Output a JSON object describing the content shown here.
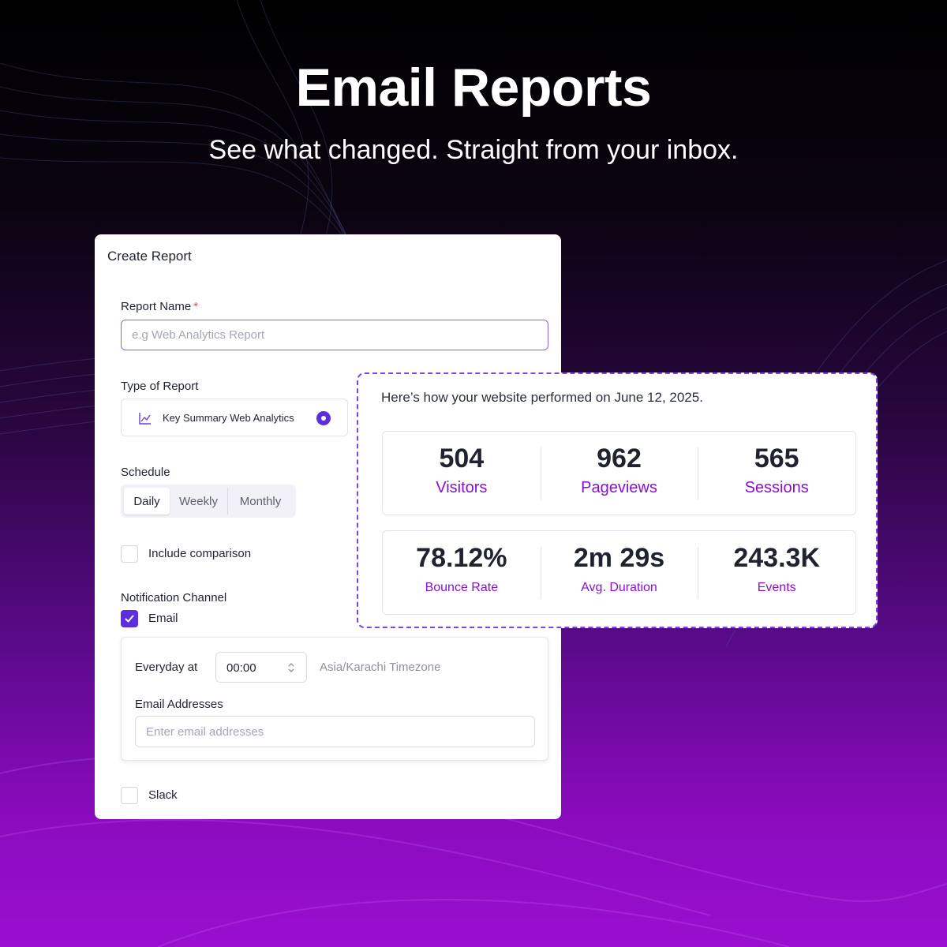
{
  "hero": {
    "title": "Email Reports",
    "subtitle": "See what changed. Straight from your inbox."
  },
  "form": {
    "title": "Create Report",
    "report_name": {
      "label": "Report Name",
      "required_marker": "*",
      "value": "",
      "placeholder": "e.g Web Analytics Report"
    },
    "type": {
      "label": "Type of Report",
      "selected": "Key Summary Web Analytics",
      "icon": "line-chart-icon"
    },
    "schedule": {
      "label": "Schedule",
      "options": [
        "Daily",
        "Weekly",
        "Monthly"
      ],
      "selected": "Daily"
    },
    "include_comparison": {
      "label": "Include comparison",
      "checked": false
    },
    "notification": {
      "label": "Notification Channel",
      "email": {
        "label": "Email",
        "checked": true
      },
      "everyday_label": "Everyday at",
      "time": "00:00",
      "timezone": "Asia/Karachi Timezone",
      "addresses_label": "Email Addresses",
      "addresses_placeholder": "Enter email addresses",
      "slack": {
        "label": "Slack",
        "checked": false
      }
    }
  },
  "preview": {
    "intro": "Here’s how your website performed on June 12, 2025.",
    "row1": [
      {
        "value": "504",
        "label": "Visitors"
      },
      {
        "value": "962",
        "label": "Pageviews"
      },
      {
        "value": "565",
        "label": "Sessions"
      }
    ],
    "row2": [
      {
        "value": "78.12%",
        "label": "Bounce Rate"
      },
      {
        "value": "2m 29s",
        "label": "Avg. Duration"
      },
      {
        "value": "243.3K",
        "label": "Events"
      }
    ]
  },
  "colors": {
    "accent": "#5b2ee0",
    "stat_label": "#8a0fd0",
    "background_top": "#000000",
    "background_bottom": "#9a0fcf"
  }
}
